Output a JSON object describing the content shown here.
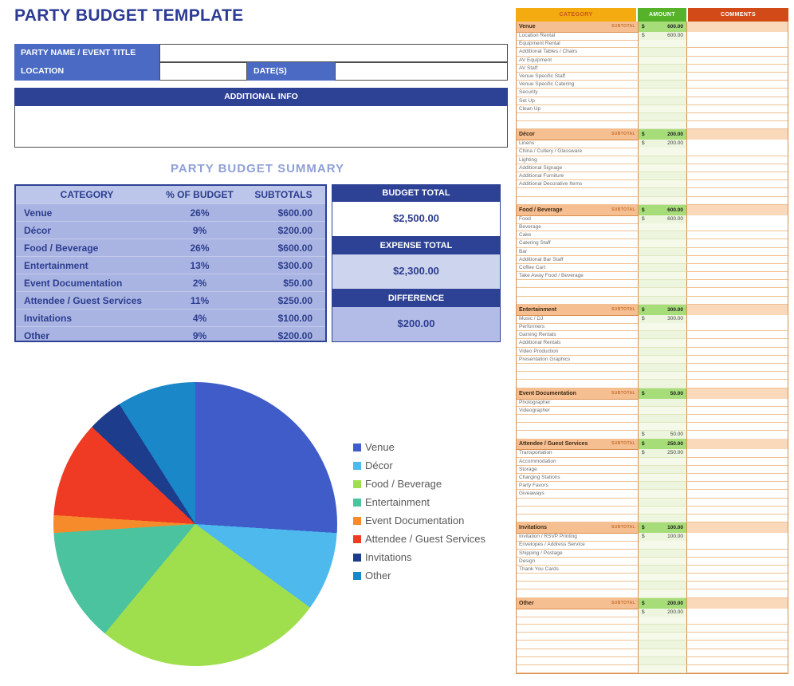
{
  "page": {
    "title": "PARTY BUDGET TEMPLATE"
  },
  "form": {
    "party_name_label": "PARTY NAME / EVENT TITLE",
    "party_name_value": "",
    "location_label": "LOCATION",
    "location_value": "",
    "dates_label": "DATE(S)",
    "dates_value": "",
    "additional_info_label": "ADDITIONAL INFO",
    "additional_info_value": ""
  },
  "summary": {
    "title": "PARTY BUDGET SUMMARY",
    "columns": [
      "CATEGORY",
      "% OF BUDGET",
      "SUBTOTALS"
    ],
    "rows": [
      {
        "category": "Venue",
        "pct": "26%",
        "subtotal": "$600.00"
      },
      {
        "category": "Décor",
        "pct": "9%",
        "subtotal": "$200.00"
      },
      {
        "category": "Food / Beverage",
        "pct": "26%",
        "subtotal": "$600.00"
      },
      {
        "category": "Entertainment",
        "pct": "13%",
        "subtotal": "$300.00"
      },
      {
        "category": "Event Documentation",
        "pct": "2%",
        "subtotal": "$50.00"
      },
      {
        "category": "Attendee / Guest Services",
        "pct": "11%",
        "subtotal": "$250.00"
      },
      {
        "category": "Invitations",
        "pct": "4%",
        "subtotal": "$100.00"
      },
      {
        "category": "Other",
        "pct": "9%",
        "subtotal": "$200.00"
      }
    ],
    "totals": [
      {
        "label": "BUDGET TOTAL",
        "value": "$2,500.00",
        "style": "white"
      },
      {
        "label": "EXPENSE TOTAL",
        "value": "$2,300.00",
        "style": "light"
      },
      {
        "label": "DIFFERENCE",
        "value": "$200.00",
        "style": "medium"
      }
    ]
  },
  "chart_data": {
    "type": "pie",
    "title": "",
    "labels": [
      "Venue",
      "Décor",
      "Food / Beverage",
      "Entertainment",
      "Event Documentation",
      "Attendee / Guest Services",
      "Invitations",
      "Other"
    ],
    "values": [
      26,
      9,
      26,
      13,
      2,
      11,
      4,
      9
    ],
    "colors": [
      "#3f5cc8",
      "#4db9ed",
      "#9fdf4d",
      "#4cc39f",
      "#f68b2b",
      "#ef3b23",
      "#1e3c8c",
      "#1a87c8"
    ],
    "legend_position": "right",
    "start_angle_deg": 0,
    "direction": "clockwise"
  },
  "sheet": {
    "columns": [
      "CATEGORY",
      "AMOUNT",
      "COMMENTS"
    ],
    "subtotal_label": "SUBTOTAL",
    "currency": "$",
    "sections": [
      {
        "name": "Venue",
        "subtotal": "600.00",
        "rows": [
          {
            "label": "Location Rental",
            "amount": "600.00"
          },
          {
            "label": "Equipment Rental",
            "amount": ""
          },
          {
            "label": "Additional Tables / Chairs",
            "amount": ""
          },
          {
            "label": "AV Equipment",
            "amount": ""
          },
          {
            "label": "AV Staff",
            "amount": ""
          },
          {
            "label": "Venue Specific Staff",
            "amount": ""
          },
          {
            "label": "Venue Specific Catering",
            "amount": ""
          },
          {
            "label": "Security",
            "amount": ""
          },
          {
            "label": "Set Up",
            "amount": ""
          },
          {
            "label": "Clean Up",
            "amount": ""
          },
          {
            "label": "",
            "amount": ""
          },
          {
            "label": "",
            "amount": ""
          }
        ]
      },
      {
        "name": "Décor",
        "subtotal": "200.00",
        "rows": [
          {
            "label": "Linens",
            "amount": "200.00"
          },
          {
            "label": "China / Cutlery / Glassware",
            "amount": ""
          },
          {
            "label": "Lighting",
            "amount": ""
          },
          {
            "label": "Additional Signage",
            "amount": ""
          },
          {
            "label": "Additional Furniture",
            "amount": ""
          },
          {
            "label": "Additional Decorative Items",
            "amount": ""
          },
          {
            "label": "",
            "amount": ""
          },
          {
            "label": "",
            "amount": ""
          }
        ]
      },
      {
        "name": "Food / Beverage",
        "subtotal": "600.00",
        "rows": [
          {
            "label": "Food",
            "amount": "600.00"
          },
          {
            "label": "Beverage",
            "amount": ""
          },
          {
            "label": "Cake",
            "amount": ""
          },
          {
            "label": "Catering Staff",
            "amount": ""
          },
          {
            "label": "Bar",
            "amount": ""
          },
          {
            "label": "Additional Bar Staff",
            "amount": ""
          },
          {
            "label": "Coffee Cart",
            "amount": ""
          },
          {
            "label": "Take Away Food / Beverage",
            "amount": ""
          },
          {
            "label": "",
            "amount": ""
          },
          {
            "label": "",
            "amount": ""
          },
          {
            "label": "",
            "amount": ""
          }
        ]
      },
      {
        "name": "Entertainment",
        "subtotal": "300.00",
        "rows": [
          {
            "label": "Music / DJ",
            "amount": "300.00"
          },
          {
            "label": "Performers",
            "amount": ""
          },
          {
            "label": "Gaming Rentals",
            "amount": ""
          },
          {
            "label": "Additional Rentals",
            "amount": ""
          },
          {
            "label": "Video Production",
            "amount": ""
          },
          {
            "label": "Presentation Graphics",
            "amount": ""
          },
          {
            "label": "",
            "amount": ""
          },
          {
            "label": "",
            "amount": ""
          },
          {
            "label": "",
            "amount": ""
          }
        ]
      },
      {
        "name": "Event Documentation",
        "subtotal": "50.00",
        "rows": [
          {
            "label": "Photographer",
            "amount": ""
          },
          {
            "label": "Videographer",
            "amount": ""
          },
          {
            "label": "",
            "amount": ""
          },
          {
            "label": "",
            "amount": ""
          },
          {
            "label": "",
            "amount": "50.00"
          }
        ]
      },
      {
        "name": "Attendee / Guest Services",
        "subtotal": "250.00",
        "rows": [
          {
            "label": "Transportation",
            "amount": "250.00"
          },
          {
            "label": "Accommodation",
            "amount": ""
          },
          {
            "label": "Storage",
            "amount": ""
          },
          {
            "label": "Charging Stations",
            "amount": ""
          },
          {
            "label": "Party Favors",
            "amount": ""
          },
          {
            "label": "Giveaways",
            "amount": ""
          },
          {
            "label": "",
            "amount": ""
          },
          {
            "label": "",
            "amount": ""
          },
          {
            "label": "",
            "amount": ""
          }
        ]
      },
      {
        "name": "Invitations",
        "subtotal": "100.00",
        "rows": [
          {
            "label": "Invitation / RSVP Printing",
            "amount": "100.00"
          },
          {
            "label": "Envelopes / Address Service",
            "amount": ""
          },
          {
            "label": "Shipping / Postage",
            "amount": ""
          },
          {
            "label": "Design",
            "amount": ""
          },
          {
            "label": "Thank You Cards",
            "amount": ""
          },
          {
            "label": "",
            "amount": ""
          },
          {
            "label": "",
            "amount": ""
          },
          {
            "label": "",
            "amount": ""
          }
        ]
      },
      {
        "name": "Other",
        "subtotal": "200.00",
        "rows": [
          {
            "label": "",
            "amount": "200.00"
          },
          {
            "label": "",
            "amount": ""
          },
          {
            "label": "",
            "amount": ""
          },
          {
            "label": "",
            "amount": ""
          },
          {
            "label": "",
            "amount": ""
          },
          {
            "label": "",
            "amount": ""
          },
          {
            "label": "",
            "amount": ""
          },
          {
            "label": "",
            "amount": ""
          }
        ]
      }
    ]
  }
}
